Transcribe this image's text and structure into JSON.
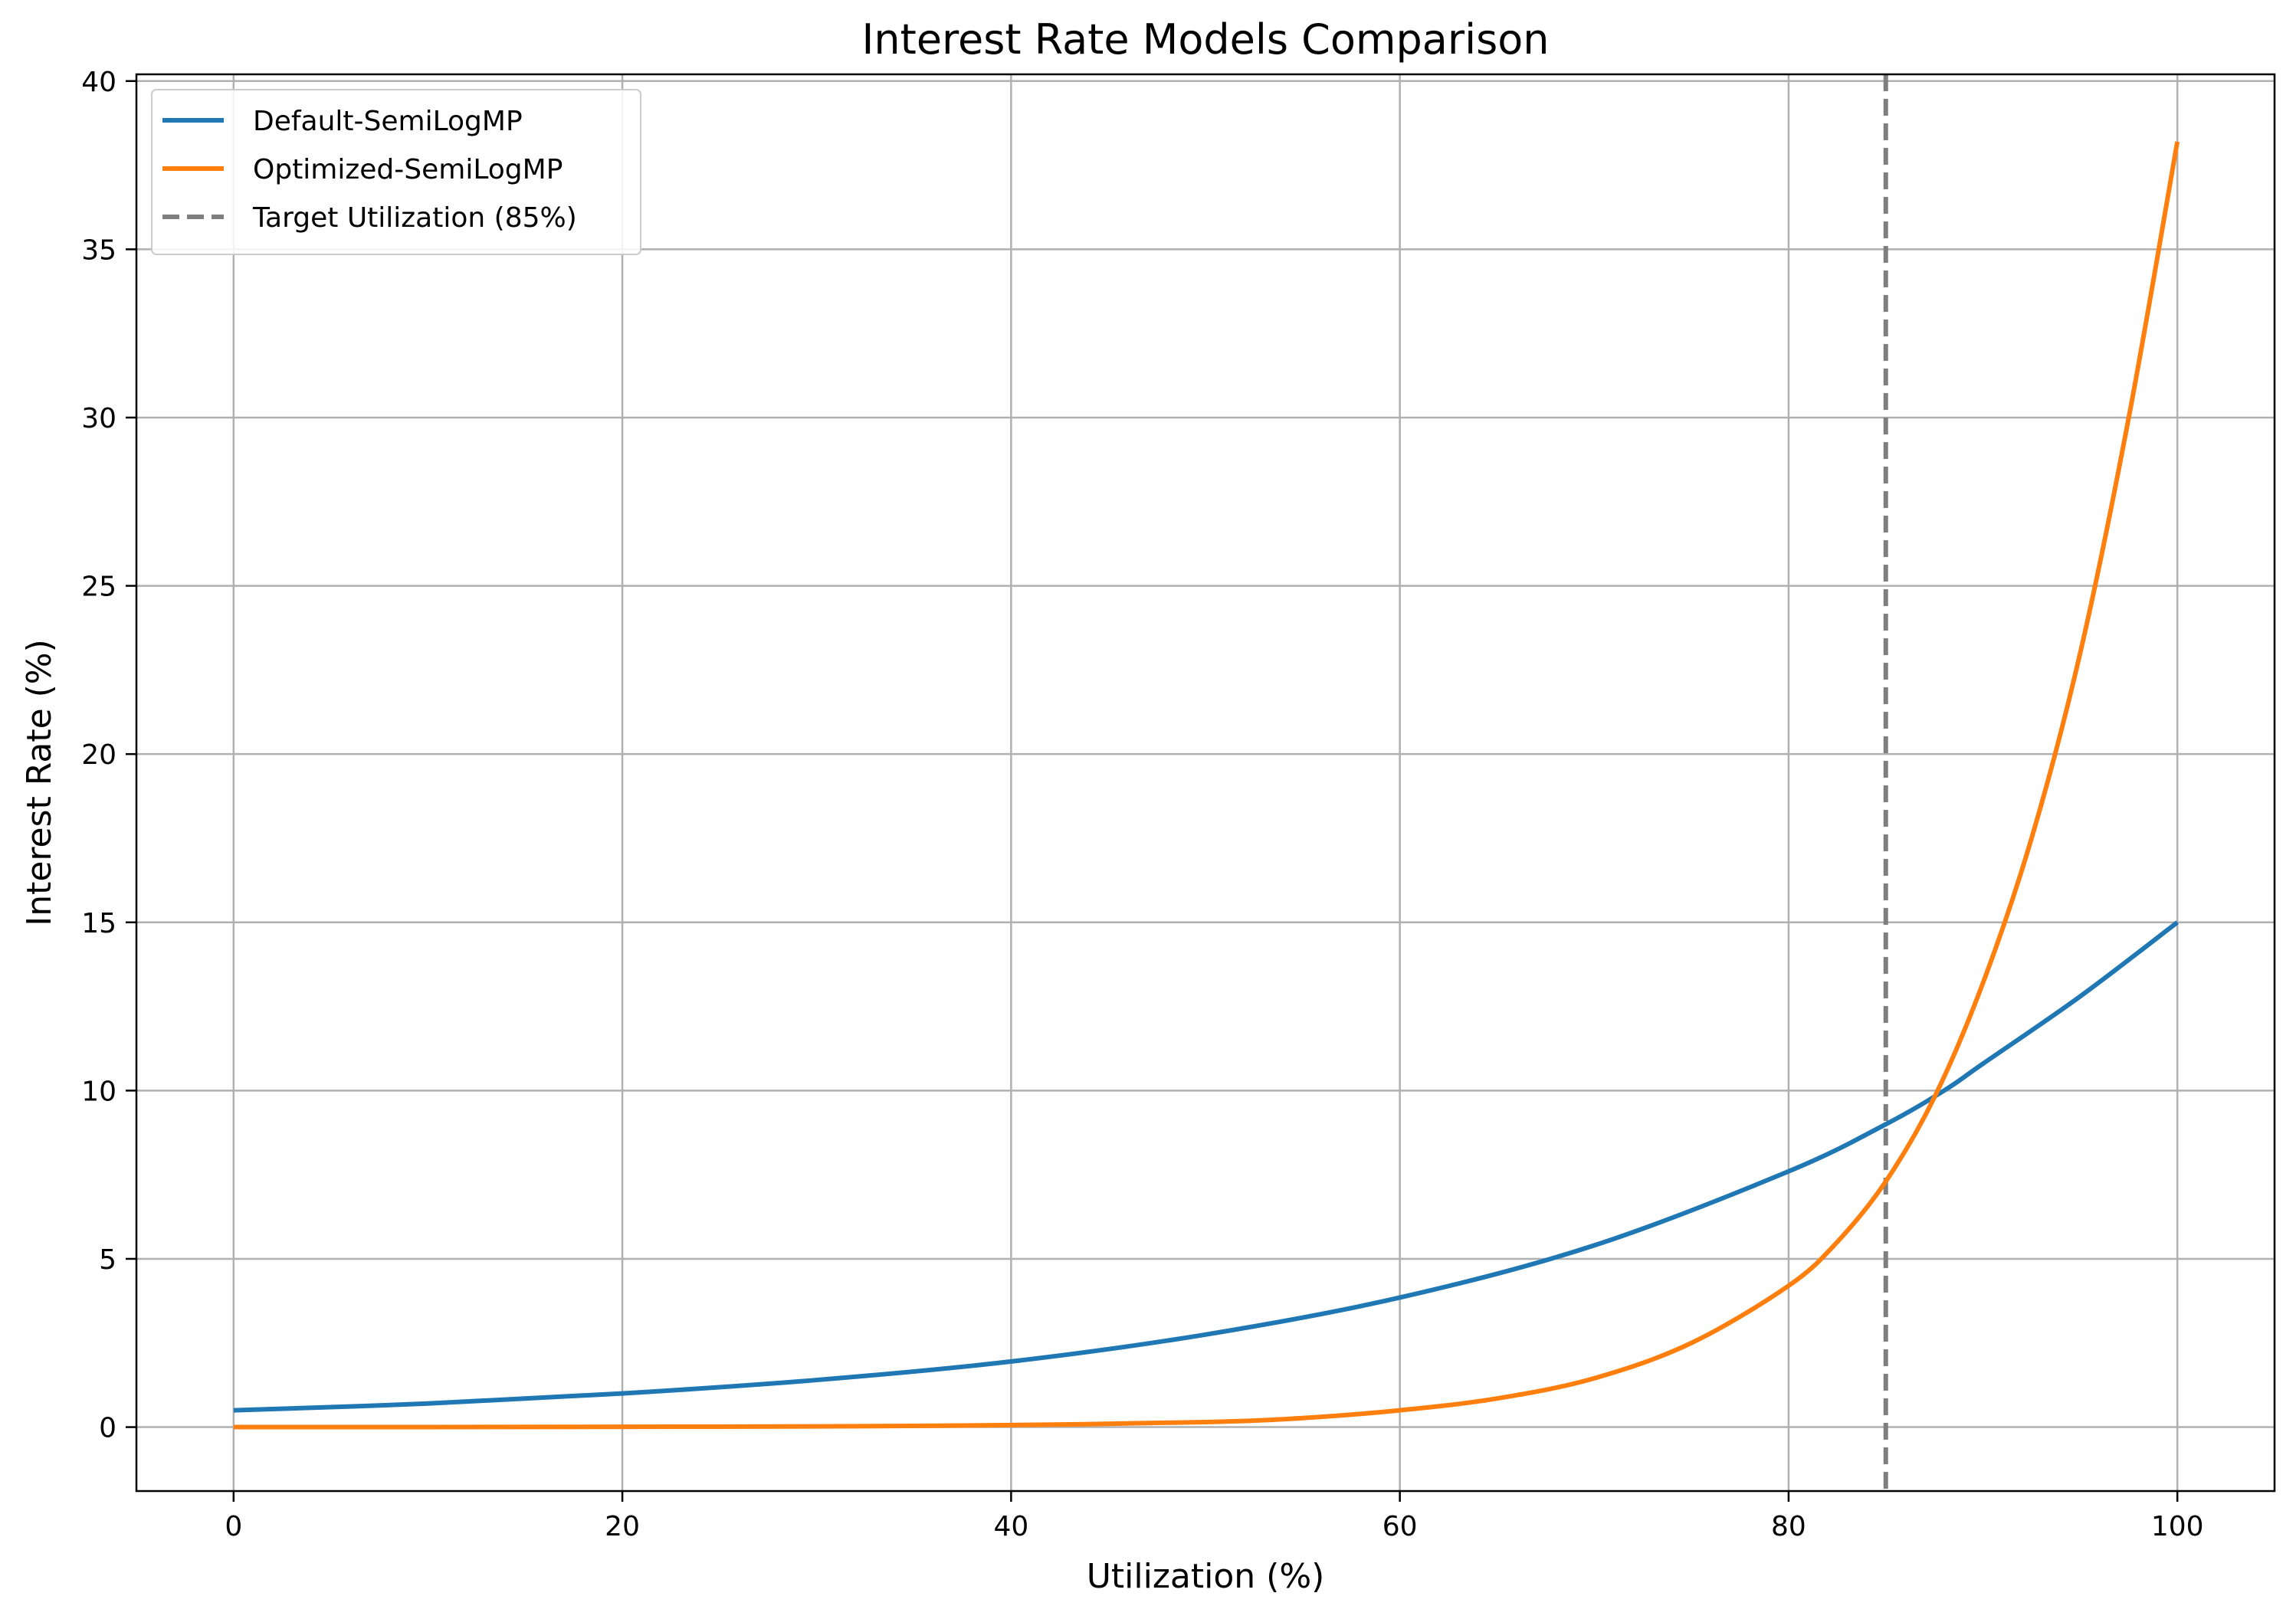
{
  "chart_data": {
    "type": "line",
    "title": "Interest Rate Models Comparison",
    "xlabel": "Utilization (%)",
    "ylabel": "Interest Rate (%)",
    "xlim": [
      -5,
      105
    ],
    "ylim": [
      -1.9,
      40.2
    ],
    "xticks": [
      0,
      20,
      40,
      60,
      80,
      100
    ],
    "yticks": [
      0,
      5,
      10,
      15,
      20,
      25,
      30,
      35,
      40
    ],
    "grid": true,
    "legend_position": "top-left",
    "series": [
      {
        "name": "Default-SemiLogMP",
        "color": "#1f77b4",
        "style": "solid",
        "x": [
          0,
          10,
          20,
          30,
          40,
          50,
          60,
          70,
          80,
          85,
          88,
          90,
          95,
          100
        ],
        "y": [
          0.5,
          0.7,
          1.0,
          1.4,
          1.95,
          2.75,
          3.85,
          5.4,
          7.6,
          9.0,
          10.0,
          10.8,
          12.8,
          15.0
        ]
      },
      {
        "name": "Optimized-SemiLogMP",
        "color": "#ff7f0e",
        "style": "solid",
        "x": [
          0,
          10,
          20,
          30,
          40,
          50,
          55,
          60,
          65,
          70,
          75,
          80,
          82.5,
          85,
          87.5,
          90,
          92.5,
          95,
          97.5,
          100
        ],
        "y": [
          0.0,
          0.0,
          0.01,
          0.02,
          0.06,
          0.15,
          0.27,
          0.5,
          0.85,
          1.45,
          2.5,
          4.2,
          5.5,
          7.3,
          9.8,
          13.2,
          17.5,
          23.0,
          30.0,
          38.2
        ]
      }
    ],
    "reference_lines": [
      {
        "name": "Target Utilization (85%)",
        "orientation": "vertical",
        "x": 85,
        "color": "#7f7f7f",
        "style": "dashed"
      }
    ]
  }
}
